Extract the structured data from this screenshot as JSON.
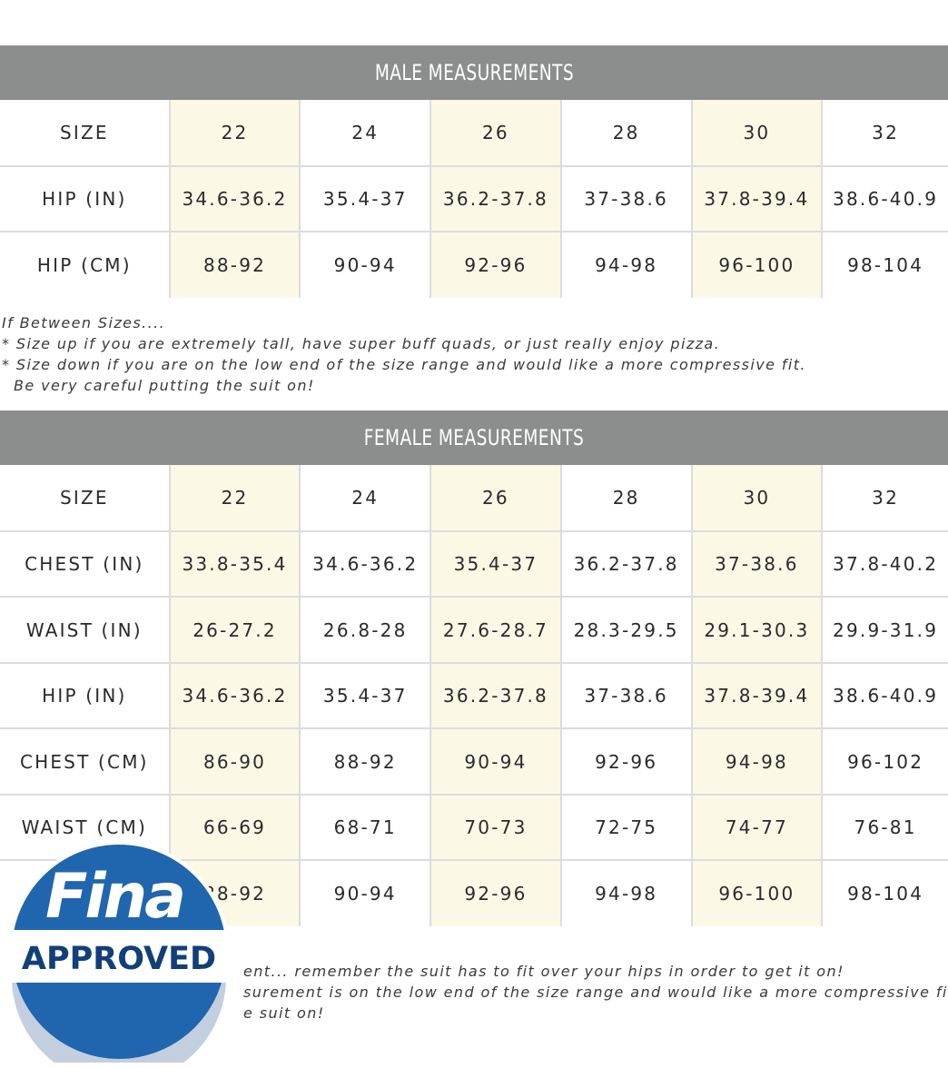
{
  "sizes": [
    "22",
    "24",
    "26",
    "28",
    "30",
    "32"
  ],
  "male": {
    "title": "MALE MEASUREMENTS",
    "rows": [
      {
        "label": "SIZE",
        "values": [
          "22",
          "24",
          "26",
          "28",
          "30",
          "32"
        ]
      },
      {
        "label": "HIP (IN)",
        "values": [
          "34.6-36.2",
          "35.4-37",
          "36.2-37.8",
          "37-38.6",
          "37.8-39.4",
          "38.6-40.9"
        ]
      },
      {
        "label": "HIP (CM)",
        "values": [
          "88-92",
          "90-94",
          "92-96",
          "94-98",
          "96-100",
          "98-104"
        ]
      }
    ],
    "notes": [
      "If Between Sizes....",
      "* Size up if you are extremely tall, have super buff quads, or just really enjoy pizza.",
      "* Size down if you are on the low end of the size range and would like a more compressive fit.",
      "  Be very careful putting the suit on!"
    ]
  },
  "female": {
    "title": "FEMALE MEASUREMENTS",
    "rows": [
      {
        "label": "SIZE",
        "values": [
          "22",
          "24",
          "26",
          "28",
          "30",
          "32"
        ]
      },
      {
        "label": "CHEST (IN)",
        "values": [
          "33.8-35.4",
          "34.6-36.2",
          "35.4-37",
          "36.2-37.8",
          "37-38.6",
          "37.8-40.2"
        ]
      },
      {
        "label": "WAIST (IN)",
        "values": [
          "26-27.2",
          "26.8-28",
          "27.6-28.7",
          "28.3-29.5",
          "29.1-30.3",
          "29.9-31.9"
        ]
      },
      {
        "label": "HIP (IN)",
        "values": [
          "34.6-36.2",
          "35.4-37",
          "36.2-37.8",
          "37-38.6",
          "37.8-39.4",
          "38.6-40.9"
        ]
      },
      {
        "label": "CHEST (CM)",
        "values": [
          "86-90",
          "88-92",
          "90-94",
          "92-96",
          "94-98",
          "96-102"
        ]
      },
      {
        "label": "WAIST (CM)",
        "values": [
          "66-69",
          "68-71",
          "70-73",
          "72-75",
          "74-77",
          "76-81"
        ]
      },
      {
        "label": "",
        "values": [
          "88-92",
          "90-94",
          "92-96",
          "94-98",
          "96-100",
          "98-104"
        ]
      }
    ],
    "notes": [
      "ent... remember the suit has to fit over your hips in order to get it on!",
      "surement is on the low end of the size range and would like a more compressive fit.",
      "e suit on!"
    ]
  },
  "badge": {
    "brand": "Fina",
    "text": "APPROVED",
    "colors": {
      "blue": "#1f66ae",
      "dark": "#0f3f7a",
      "white": "#ffffff",
      "text_navy": "#123f78"
    }
  },
  "colors": {
    "band": "#8c8e8e",
    "highlight": "#fcf8e6",
    "grid": "#dcdcdc"
  }
}
